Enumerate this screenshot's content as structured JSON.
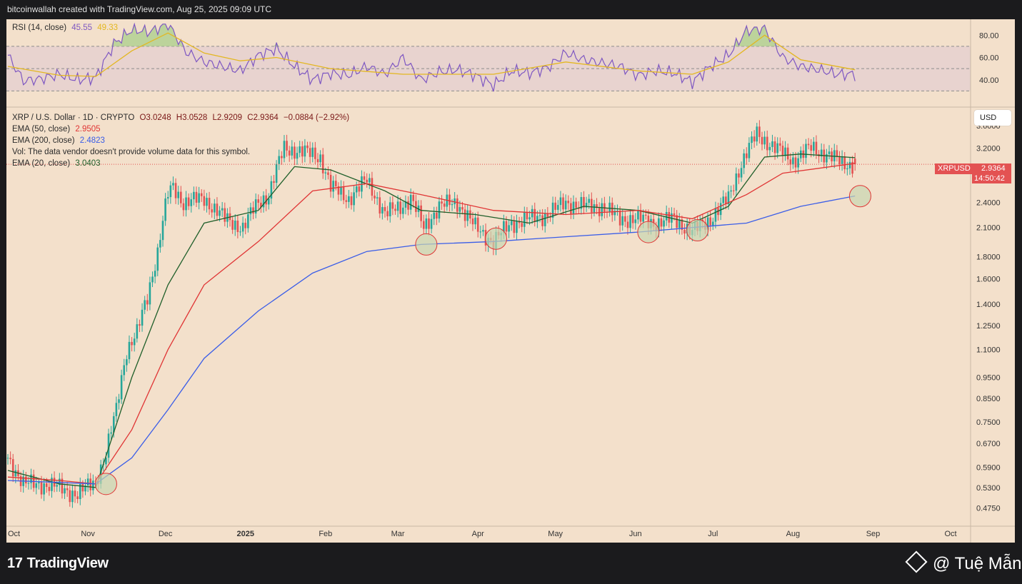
{
  "header": {
    "attribution": "bitcoinwallah created with TradingView.com, Aug 25, 2025 09:09 UTC"
  },
  "rsi_legend": {
    "label": "RSI (14, close)",
    "rsi_value": "45.55",
    "ma_value": "49.33"
  },
  "price_legend": {
    "symbol_line": "XRP / U.S. Dollar · 1D · CRYPTO",
    "open": "O3.0248",
    "high": "H3.0528",
    "low": "L2.9209",
    "close": "C2.9364",
    "change": "−0.0884 (−2.92%)",
    "ema50_label": "EMA (50, close)",
    "ema50_value": "2.9505",
    "ema200_label": "EMA (200, close)",
    "ema200_value": "2.4823",
    "vol_note": "Vol: The data vendor doesn't provide volume data for this symbol.",
    "ema20_label": "EMA (20, close)",
    "ema20_value": "3.0403"
  },
  "price_axis": {
    "currency_button": "USD",
    "symbol_tag": "XRPUSD",
    "last_price": "2.9364",
    "countdown": "14:50:42"
  },
  "footer": {
    "brand": "TradingView",
    "watermark": "@ Tuệ Mẫn"
  },
  "colors": {
    "background": "#f3e0cb",
    "up_candle": "#26a69a",
    "down_candle": "#e35252",
    "ema20": "#1f5f2a",
    "ema50": "#e03535",
    "ema200": "#3a5de8",
    "rsi": "#7e57c2",
    "rsi_ma": "#e3b721",
    "support_marker": "#c8d6b0"
  },
  "chart_data": [
    {
      "type": "line",
      "title": "RSI (14, close)",
      "scale": "linear",
      "y_ticks": [
        40,
        60,
        80
      ],
      "bands": [
        30,
        50,
        70
      ],
      "x_range": [
        "2024-10-01",
        "2025-10-01"
      ],
      "series": [
        {
          "name": "RSI",
          "color": "#7e57c2",
          "x": [
            "2024-10-01",
            "2024-10-07",
            "2024-10-14",
            "2024-10-21",
            "2024-10-28",
            "2024-11-04",
            "2024-11-11",
            "2024-11-18",
            "2024-11-25",
            "2024-12-02",
            "2024-12-09",
            "2024-12-16",
            "2024-12-23",
            "2024-12-30",
            "2025-01-06",
            "2025-01-13",
            "2025-01-20",
            "2025-01-27",
            "2025-02-03",
            "2025-02-10",
            "2025-02-17",
            "2025-02-24",
            "2025-03-03",
            "2025-03-10",
            "2025-03-17",
            "2025-03-24",
            "2025-03-31",
            "2025-04-07",
            "2025-04-14",
            "2025-04-21",
            "2025-04-28",
            "2025-05-05",
            "2025-05-12",
            "2025-05-19",
            "2025-05-26",
            "2025-06-02",
            "2025-06-09",
            "2025-06-16",
            "2025-06-23",
            "2025-06-30",
            "2025-07-07",
            "2025-07-14",
            "2025-07-21",
            "2025-07-28",
            "2025-08-04",
            "2025-08-11",
            "2025-08-18",
            "2025-08-25"
          ],
          "values": [
            62,
            39,
            41,
            45,
            40,
            42,
            72,
            85,
            83,
            90,
            65,
            56,
            52,
            48,
            62,
            68,
            52,
            40,
            46,
            44,
            52,
            45,
            60,
            40,
            47,
            49,
            44,
            35,
            48,
            46,
            51,
            64,
            58,
            55,
            52,
            44,
            48,
            46,
            38,
            52,
            62,
            84,
            86,
            60,
            52,
            49,
            45,
            45
          ]
        },
        {
          "name": "RSI-based MA",
          "color": "#e3b721",
          "x": [
            "2024-10-01",
            "2024-10-21",
            "2024-11-04",
            "2024-11-18",
            "2024-12-02",
            "2024-12-16",
            "2024-12-30",
            "2025-01-13",
            "2025-02-03",
            "2025-03-03",
            "2025-04-07",
            "2025-05-05",
            "2025-06-02",
            "2025-06-23",
            "2025-07-07",
            "2025-07-21",
            "2025-08-04",
            "2025-08-25"
          ],
          "values": [
            52,
            44,
            43,
            66,
            82,
            64,
            57,
            60,
            50,
            45,
            45,
            56,
            48,
            45,
            56,
            80,
            58,
            49
          ]
        }
      ]
    },
    {
      "type": "candlestick",
      "title": "XRP / U.S. Dollar · 1D · CRYPTO",
      "scale": "log",
      "y_ticks": [
        0.475,
        0.53,
        0.59,
        0.67,
        0.75,
        0.85,
        0.95,
        1.1,
        1.25,
        1.4,
        1.6,
        1.8,
        2.1,
        2.4,
        3.2,
        3.6
      ],
      "x_ticks": [
        "Oct",
        "Nov",
        "Dec",
        "2025",
        "Feb",
        "Mar",
        "Apr",
        "May",
        "Jun",
        "Jul",
        "Aug",
        "Sep",
        "Oct"
      ],
      "x_range": [
        "2024-10-01",
        "2025-10-01"
      ],
      "last": {
        "date": "2025-08-25",
        "open": 3.0248,
        "high": 3.0528,
        "low": 2.9209,
        "close": 2.9364
      },
      "closes": {
        "x": [
          "2024-10-01",
          "2024-10-07",
          "2024-10-14",
          "2024-10-21",
          "2024-10-28",
          "2024-11-04",
          "2024-11-08",
          "2024-11-12",
          "2024-11-16",
          "2024-11-20",
          "2024-11-24",
          "2024-11-28",
          "2024-12-02",
          "2024-12-04",
          "2024-12-08",
          "2024-12-16",
          "2024-12-24",
          "2024-12-31",
          "2025-01-06",
          "2025-01-10",
          "2025-01-16",
          "2025-01-22",
          "2025-01-30",
          "2025-02-03",
          "2025-02-10",
          "2025-02-17",
          "2025-02-24",
          "2025-03-02",
          "2025-03-06",
          "2025-03-11",
          "2025-03-17",
          "2025-03-24",
          "2025-03-31",
          "2025-04-07",
          "2025-04-14",
          "2025-04-21",
          "2025-04-28",
          "2025-05-05",
          "2025-05-12",
          "2025-05-19",
          "2025-05-26",
          "2025-06-02",
          "2025-06-09",
          "2025-06-16",
          "2025-06-23",
          "2025-06-30",
          "2025-07-07",
          "2025-07-12",
          "2025-07-18",
          "2025-07-25",
          "2025-08-01",
          "2025-08-08",
          "2025-08-14",
          "2025-08-20",
          "2025-08-25"
        ],
        "values": [
          0.62,
          0.54,
          0.54,
          0.53,
          0.51,
          0.55,
          0.63,
          0.8,
          1.1,
          1.2,
          1.45,
          1.85,
          2.5,
          2.6,
          2.4,
          2.45,
          2.2,
          2.1,
          2.4,
          2.5,
          3.2,
          3.15,
          3.05,
          2.6,
          2.45,
          2.7,
          2.25,
          2.35,
          2.45,
          2.1,
          2.35,
          2.4,
          2.1,
          1.95,
          2.15,
          2.2,
          2.25,
          2.4,
          2.35,
          2.35,
          2.2,
          2.2,
          2.15,
          2.2,
          2.05,
          2.2,
          2.45,
          2.95,
          3.45,
          3.2,
          3.0,
          3.2,
          3.1,
          2.95,
          2.9364
        ]
      },
      "series": [
        {
          "name": "EMA (20, close)",
          "color": "#1f5f2a",
          "x": [
            "2024-10-01",
            "2024-10-21",
            "2024-11-04",
            "2024-11-18",
            "2024-12-02",
            "2024-12-16",
            "2025-01-06",
            "2025-01-20",
            "2025-02-03",
            "2025-02-24",
            "2025-03-10",
            "2025-03-31",
            "2025-04-21",
            "2025-05-12",
            "2025-06-02",
            "2025-06-23",
            "2025-07-07",
            "2025-07-21",
            "2025-08-04",
            "2025-08-25"
          ],
          "values": [
            0.58,
            0.54,
            0.53,
            0.95,
            1.55,
            2.15,
            2.3,
            2.9,
            2.85,
            2.55,
            2.3,
            2.25,
            2.15,
            2.35,
            2.3,
            2.15,
            2.35,
            3.05,
            3.1,
            3.0403
          ]
        },
        {
          "name": "EMA (50, close)",
          "color": "#e03535",
          "x": [
            "2024-10-01",
            "2024-10-21",
            "2024-11-04",
            "2024-11-18",
            "2024-12-02",
            "2024-12-16",
            "2025-01-06",
            "2025-01-27",
            "2025-02-17",
            "2025-03-10",
            "2025-04-07",
            "2025-05-05",
            "2025-06-02",
            "2025-06-23",
            "2025-07-14",
            "2025-07-28",
            "2025-08-25"
          ],
          "values": [
            0.56,
            0.55,
            0.54,
            0.72,
            1.1,
            1.55,
            1.95,
            2.55,
            2.65,
            2.5,
            2.3,
            2.25,
            2.3,
            2.2,
            2.5,
            2.8,
            2.9505
          ]
        },
        {
          "name": "EMA (200, close)",
          "color": "#3a5de8",
          "x": [
            "2024-10-01",
            "2024-11-04",
            "2024-11-18",
            "2024-12-02",
            "2024-12-16",
            "2025-01-06",
            "2025-01-27",
            "2025-02-17",
            "2025-03-10",
            "2025-04-07",
            "2025-05-05",
            "2025-06-02",
            "2025-06-23",
            "2025-07-14",
            "2025-08-04",
            "2025-08-25"
          ],
          "values": [
            0.55,
            0.54,
            0.62,
            0.8,
            1.05,
            1.35,
            1.65,
            1.85,
            1.92,
            1.95,
            2.0,
            2.05,
            2.1,
            2.15,
            2.35,
            2.4823
          ]
        }
      ],
      "markers": [
        {
          "label": "support touch",
          "x": "2024-11-08",
          "y": 0.54
        },
        {
          "label": "support touch",
          "x": "2025-03-12",
          "y": 1.92
        },
        {
          "label": "support touch",
          "x": "2025-04-08",
          "y": 1.98
        },
        {
          "label": "support touch",
          "x": "2025-06-06",
          "y": 2.05
        },
        {
          "label": "support touch",
          "x": "2025-06-25",
          "y": 2.07
        },
        {
          "label": "support touch",
          "x": "2025-08-27",
          "y": 2.48
        }
      ]
    }
  ]
}
